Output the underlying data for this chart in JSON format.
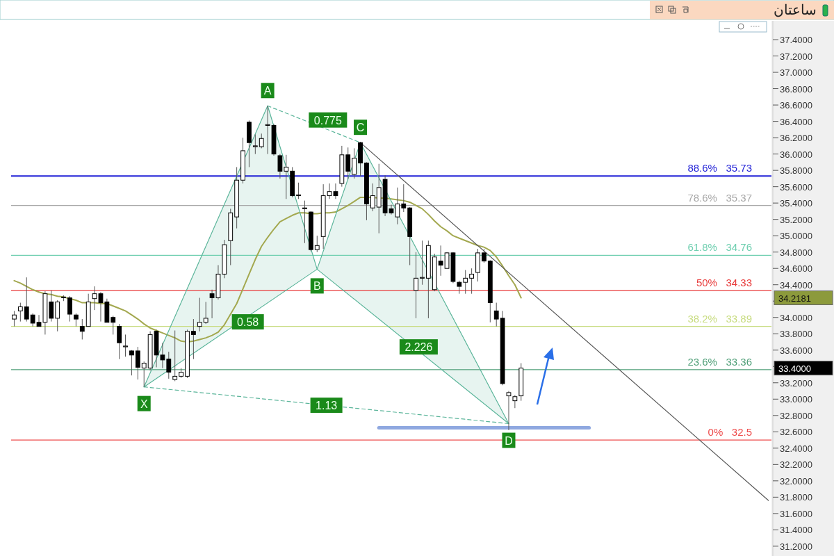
{
  "chart_data": {
    "type": "candlestick",
    "title": "ساعتان",
    "categories": [
      null,
      null,
      null,
      null,
      null,
      null,
      null,
      null,
      null,
      null,
      null,
      null,
      null,
      null,
      null,
      null,
      null,
      null,
      null,
      null,
      null,
      null,
      null,
      null,
      null,
      null,
      null,
      null,
      null,
      null,
      null,
      null,
      null,
      null,
      null,
      null,
      null,
      null,
      null,
      null,
      null,
      null,
      null,
      null,
      null,
      null,
      null,
      null,
      null,
      null,
      null,
      null,
      null,
      null,
      null,
      null,
      null,
      null,
      null,
      null,
      null,
      null,
      null,
      null,
      null,
      null,
      null,
      null,
      null,
      null,
      null,
      null,
      null,
      null,
      null,
      null,
      null,
      null,
      null,
      null,
      null,
      null,
      null,
      null,
      null,
      null,
      null,
      null,
      null,
      null,
      null,
      null,
      null,
      null,
      null,
      null,
      null,
      null,
      null,
      null,
      null,
      null,
      null,
      null,
      null,
      null,
      null,
      null,
      null,
      null,
      null,
      null,
      null,
      null,
      null,
      null,
      null,
      null,
      null,
      null,
      null,
      null,
      null
    ],
    "ylim": [
      31.08,
      37.63
    ],
    "yticks": [
      {
        "value": 31.2,
        "label": "31.2000"
      },
      {
        "value": 31.4,
        "label": "31.4000"
      },
      {
        "value": 31.6,
        "label": "31.6000"
      },
      {
        "value": 31.8,
        "label": "31.8000"
      },
      {
        "value": 32.0,
        "label": "32.0000"
      },
      {
        "value": 32.2,
        "label": "32.2000"
      },
      {
        "value": 32.4,
        "label": "32.4000"
      },
      {
        "value": 32.6,
        "label": "32.6000"
      },
      {
        "value": 32.8,
        "label": "32.8000"
      },
      {
        "value": 33.0,
        "label": "33.0000"
      },
      {
        "value": 33.2,
        "label": "33.2000"
      },
      {
        "value": 33.4,
        "label": null
      },
      {
        "value": 33.6,
        "label": "33.6000"
      },
      {
        "value": 33.8,
        "label": "33.8000"
      },
      {
        "value": 34.0,
        "label": "34.0000"
      },
      {
        "value": 34.2,
        "label": null
      },
      {
        "value": 34.4,
        "label": "34.4000"
      },
      {
        "value": 34.6,
        "label": "34.6000"
      },
      {
        "value": 34.8,
        "label": "34.8000"
      },
      {
        "value": 35.0,
        "label": "35.0000"
      },
      {
        "value": 35.2,
        "label": "35.2000"
      },
      {
        "value": 35.4,
        "label": "35.4000"
      },
      {
        "value": 35.6,
        "label": "35.6000"
      },
      {
        "value": 35.8,
        "label": "35.8000"
      },
      {
        "value": 36.0,
        "label": "36.0000"
      },
      {
        "value": 36.2,
        "label": "36.2000"
      },
      {
        "value": 36.4,
        "label": "36.4000"
      },
      {
        "value": 36.6,
        "label": "36.6000"
      },
      {
        "value": 36.8,
        "label": "36.8000"
      },
      {
        "value": 37.0,
        "label": "37.0000"
      },
      {
        "value": 37.2,
        "label": "37.2000"
      },
      {
        "value": 37.4,
        "label": "37.4000"
      }
    ],
    "tick_labels": "y",
    "grid": false,
    "series": [
      {
        "type": "line",
        "color": "#a3a84f",
        "values": [
          34.45,
          34.42,
          34.38,
          34.34,
          34.31,
          34.29,
          34.28,
          34.26,
          34.25,
          34.23,
          34.21,
          34.18,
          34.18,
          34.18,
          34.17,
          34.17,
          34.14,
          34.11,
          34.08,
          34.03,
          33.98,
          33.92,
          33.87,
          33.84,
          33.81,
          33.78,
          33.75,
          33.71,
          33.7,
          33.71,
          33.73,
          33.75,
          33.78,
          33.82,
          33.91,
          34.04,
          34.17,
          34.35,
          34.53,
          34.71,
          34.87,
          34.98,
          35.08,
          35.17,
          35.21,
          35.25,
          35.28,
          35.28,
          35.27,
          35.27,
          35.28,
          35.28,
          35.29,
          35.33,
          35.37,
          35.42,
          35.47,
          35.47,
          35.47,
          35.46,
          35.46,
          35.45,
          35.44,
          35.43,
          35.41,
          35.37,
          35.33,
          35.26,
          35.18,
          35.11,
          35.06,
          35.0,
          34.97,
          34.94,
          34.91,
          34.88,
          34.86,
          34.82,
          34.74,
          34.63,
          34.51,
          34.4,
          34.24,
          null,
          null,
          null,
          null,
          null,
          null,
          null,
          null,
          null,
          null,
          null,
          null,
          null,
          null,
          null,
          null,
          null,
          null,
          null,
          null,
          null,
          null,
          null,
          null,
          null,
          null,
          null,
          null,
          null,
          null,
          null,
          null,
          null,
          null,
          null,
          null,
          null,
          null,
          null,
          null
        ]
      },
      {
        "type": "line",
        "color": "#5bb59a",
        "values": [
          null,
          null,
          null,
          null,
          null,
          null,
          null,
          null,
          null,
          null,
          null,
          null,
          null,
          null,
          null,
          null,
          null,
          null,
          null,
          null,
          null,
          33.15,
          null,
          null,
          null,
          null,
          null,
          null,
          null,
          null,
          null,
          null,
          null,
          null,
          null,
          null,
          null,
          null,
          null,
          null,
          null,
          36.59,
          null,
          null,
          null,
          null,
          null,
          null,
          null,
          34.59,
          null,
          null,
          null,
          null,
          null,
          null,
          36.14,
          null,
          null,
          null,
          null,
          null,
          null,
          null,
          null,
          null,
          null,
          null,
          null,
          null,
          null,
          null,
          null,
          null,
          null,
          null,
          null,
          null,
          null,
          null,
          32.7,
          null,
          null,
          null,
          null,
          null,
          null,
          null,
          null,
          null,
          null,
          null,
          null,
          null,
          null,
          null,
          null,
          null,
          null,
          null,
          null,
          null,
          null,
          null,
          null,
          null,
          null,
          null,
          null,
          null,
          null,
          null,
          null,
          null,
          null,
          null,
          null,
          null,
          null,
          null,
          null,
          null,
          null
        ]
      },
      {
        "type": "line",
        "color": "#5bb59a",
        "values": [
          null,
          null,
          null,
          null,
          null,
          null,
          null,
          null,
          null,
          null,
          null,
          null,
          null,
          null,
          null,
          null,
          null,
          null,
          null,
          null,
          null,
          33.15,
          null,
          null,
          null,
          null,
          null,
          null,
          null,
          null,
          null,
          null,
          null,
          null,
          null,
          null,
          null,
          null,
          null,
          null,
          null,
          null,
          null,
          null,
          null,
          null,
          null,
          null,
          null,
          34.59,
          null,
          null,
          null,
          null,
          null,
          null,
          null,
          null,
          null,
          null,
          null,
          null,
          null,
          null,
          null,
          null,
          null,
          null,
          null,
          null,
          null,
          null,
          null,
          null,
          null,
          null,
          null,
          null,
          null,
          null,
          32.7,
          null,
          null,
          null,
          null,
          null,
          null,
          null,
          null,
          null,
          null,
          null,
          null,
          null,
          null,
          null,
          null,
          null,
          null,
          null,
          null,
          null,
          null,
          null,
          null,
          null,
          null,
          null,
          null,
          null,
          null,
          null,
          null,
          null,
          null,
          null,
          null,
          null,
          null,
          null,
          null,
          null,
          null
        ]
      },
      {
        "type": "line",
        "color": "#5bb59a",
        "line_style": "dashed",
        "values": [
          null,
          null,
          null,
          null,
          null,
          null,
          null,
          null,
          null,
          null,
          null,
          null,
          null,
          null,
          null,
          null,
          null,
          null,
          null,
          null,
          null,
          33.15,
          null,
          null,
          null,
          null,
          null,
          null,
          null,
          null,
          null,
          null,
          null,
          null,
          null,
          null,
          null,
          null,
          null,
          null,
          null,
          null,
          null,
          null,
          null,
          null,
          null,
          null,
          null,
          null,
          null,
          null,
          null,
          null,
          null,
          null,
          null,
          null,
          null,
          null,
          null,
          null,
          null,
          null,
          null,
          null,
          null,
          null,
          null,
          null,
          null,
          null,
          null,
          null,
          null,
          null,
          null,
          null,
          null,
          null,
          32.7,
          null,
          null,
          null,
          null,
          null,
          null,
          null,
          null,
          null,
          null,
          null,
          null,
          null,
          null,
          null,
          null,
          null,
          null,
          null,
          null,
          null,
          null,
          null,
          null,
          null,
          null,
          null,
          null,
          null,
          null,
          null,
          null,
          null,
          null,
          null,
          null,
          null,
          null,
          null,
          null,
          null,
          null
        ]
      },
      {
        "type": "line",
        "color": "#5bb59a",
        "line_style": "dashed",
        "values": [
          null,
          null,
          null,
          null,
          null,
          null,
          null,
          null,
          null,
          null,
          null,
          null,
          null,
          null,
          null,
          null,
          null,
          null,
          null,
          null,
          null,
          null,
          null,
          null,
          null,
          null,
          null,
          null,
          null,
          null,
          null,
          null,
          null,
          null,
          null,
          null,
          null,
          null,
          null,
          null,
          null,
          36.59,
          null,
          null,
          null,
          null,
          null,
          null,
          null,
          null,
          null,
          null,
          null,
          null,
          null,
          null,
          36.14,
          null,
          null,
          null,
          null,
          null,
          null,
          null,
          null,
          null,
          null,
          null,
          null,
          null,
          null,
          null,
          null,
          null,
          null,
          null,
          null,
          null,
          null,
          null,
          null,
          null,
          null,
          null,
          null,
          null,
          null,
          null,
          null,
          null,
          null,
          null,
          null,
          null,
          null,
          null,
          null,
          null,
          null,
          null,
          null,
          null,
          null,
          null,
          null,
          null,
          null,
          null,
          null,
          null,
          null,
          null,
          null,
          null,
          null,
          null,
          null,
          null,
          null,
          null,
          null,
          null,
          null
        ]
      },
      {
        "type": "line",
        "color": "#555555",
        "values": [
          null,
          null,
          null,
          null,
          null,
          null,
          null,
          null,
          null,
          null,
          null,
          null,
          null,
          null,
          null,
          null,
          null,
          null,
          null,
          null,
          null,
          null,
          null,
          null,
          null,
          null,
          null,
          null,
          null,
          null,
          null,
          null,
          null,
          null,
          null,
          null,
          null,
          null,
          null,
          null,
          null,
          null,
          null,
          null,
          null,
          null,
          null,
          null,
          null,
          null,
          null,
          null,
          null,
          null,
          null,
          null,
          36.14,
          null,
          null,
          null,
          null,
          null,
          null,
          null,
          null,
          null,
          null,
          null,
          null,
          null,
          null,
          null,
          null,
          null,
          null,
          null,
          null,
          null,
          null,
          null,
          null,
          null,
          null,
          null,
          null,
          null,
          null,
          null,
          null,
          null,
          null,
          null,
          null,
          null,
          null,
          null,
          null,
          null,
          null,
          null,
          null,
          null,
          null,
          null,
          null,
          null,
          null,
          null,
          null,
          null,
          null,
          null,
          null,
          null,
          null,
          null,
          null,
          null,
          null,
          null,
          null,
          null,
          31.76
        ]
      },
      {
        "type": "line",
        "color": "#8fa8e0",
        "values": [
          null,
          null,
          null,
          null,
          null,
          null,
          null,
          null,
          null,
          null,
          null,
          null,
          null,
          null,
          null,
          null,
          null,
          null,
          null,
          null,
          null,
          null,
          null,
          null,
          null,
          null,
          null,
          null,
          null,
          null,
          null,
          null,
          null,
          null,
          null,
          null,
          null,
          null,
          null,
          null,
          null,
          null,
          null,
          null,
          null,
          null,
          null,
          null,
          null,
          null,
          null,
          null,
          null,
          null,
          null,
          null,
          null,
          null,
          null,
          32.65,
          null,
          null,
          null,
          null,
          null,
          null,
          null,
          null,
          null,
          null,
          null,
          null,
          null,
          null,
          null,
          null,
          null,
          null,
          null,
          null,
          null,
          null,
          null,
          null,
          null,
          null,
          null,
          null,
          null,
          null,
          null,
          null,
          null,
          32.65,
          null,
          null,
          null,
          null,
          null,
          null,
          null,
          null,
          null,
          null,
          null,
          null,
          null,
          null,
          null,
          null,
          null,
          null,
          null,
          null,
          null,
          null,
          null,
          null,
          null,
          null,
          null,
          null,
          null
        ]
      },
      {
        "ohlc": [
          [
            33.98,
            34.08,
            33.89,
            34.03
          ],
          [
            34.08,
            34.18,
            33.95,
            34.13
          ],
          [
            34.13,
            34.49,
            33.95,
            33.98
          ],
          [
            34.03,
            34.05,
            33.89,
            33.93
          ],
          [
            33.94,
            34.03,
            33.89,
            33.89
          ],
          [
            33.94,
            34.32,
            33.79,
            34.29
          ],
          [
            34.19,
            34.33,
            33.95,
            33.99
          ],
          [
            33.99,
            34.21,
            33.83,
            34.19
          ],
          [
            34.24,
            34.27,
            34.2,
            34.25
          ],
          [
            34.24,
            34.26,
            33.95,
            34.04
          ],
          [
            34.03,
            34.05,
            33.89,
            33.98
          ],
          [
            33.89,
            33.98,
            33.73,
            33.83
          ],
          [
            33.89,
            34.29,
            33.89,
            34.19
          ],
          [
            34.23,
            34.38,
            34.09,
            34.29
          ],
          [
            34.29,
            34.31,
            33.95,
            34.18
          ],
          [
            34.19,
            34.23,
            33.94,
            33.94
          ],
          [
            34.0,
            34.02,
            33.79,
            33.94
          ],
          [
            33.89,
            33.92,
            33.49,
            33.69
          ],
          [
            33.64,
            33.79,
            33.52,
            33.65
          ],
          [
            33.59,
            33.6,
            33.29,
            33.54
          ],
          [
            33.59,
            33.64,
            33.24,
            33.39
          ],
          [
            33.38,
            33.46,
            33.15,
            33.44
          ],
          [
            33.38,
            33.83,
            33.35,
            33.79
          ],
          [
            33.83,
            33.85,
            33.39,
            33.54
          ],
          [
            33.54,
            33.69,
            33.38,
            33.48
          ],
          [
            33.49,
            33.58,
            33.25,
            33.33
          ],
          [
            33.24,
            33.84,
            33.22,
            33.28
          ],
          [
            33.28,
            33.38,
            33.26,
            33.33
          ],
          [
            33.28,
            33.85,
            33.26,
            33.83
          ],
          [
            33.83,
            33.98,
            33.49,
            33.79
          ],
          [
            33.89,
            34.24,
            33.83,
            33.94
          ],
          [
            33.94,
            34.19,
            33.92,
            33.99
          ],
          [
            34.29,
            34.34,
            33.99,
            34.24
          ],
          [
            34.24,
            34.64,
            34.22,
            34.53
          ],
          [
            34.53,
            34.95,
            34.48,
            34.89
          ],
          [
            34.94,
            35.33,
            34.64,
            35.28
          ],
          [
            35.23,
            35.84,
            35.09,
            35.68
          ],
          [
            35.68,
            36.2,
            35.64,
            36.04
          ],
          [
            36.39,
            36.41,
            35.84,
            36.14
          ],
          [
            36.09,
            36.24,
            36.0,
            36.1
          ],
          [
            36.09,
            36.25,
            36.07,
            36.19
          ],
          [
            36.35,
            36.59,
            36.0,
            36.36
          ],
          [
            36.35,
            36.37,
            35.98,
            36.0
          ],
          [
            35.98,
            36.0,
            35.7,
            35.79
          ],
          [
            35.79,
            35.99,
            35.45,
            35.84
          ],
          [
            35.79,
            35.84,
            35.47,
            35.49
          ],
          [
            35.49,
            35.65,
            35.45,
            35.5
          ],
          [
            35.33,
            35.43,
            34.91,
            35.34
          ],
          [
            35.29,
            35.3,
            34.81,
            34.83
          ],
          [
            34.83,
            35.0,
            34.8,
            34.88
          ],
          [
            34.99,
            35.63,
            34.84,
            35.49
          ],
          [
            35.49,
            35.64,
            35.45,
            35.54
          ],
          [
            35.54,
            35.64,
            35.45,
            35.49
          ],
          [
            35.64,
            36.1,
            35.6,
            35.99
          ],
          [
            35.99,
            36.08,
            35.69,
            35.79
          ],
          [
            35.75,
            36.07,
            35.7,
            35.95
          ],
          [
            36.14,
            36.15,
            35.73,
            35.89
          ],
          [
            35.89,
            35.9,
            35.19,
            35.39
          ],
          [
            35.34,
            35.64,
            35.3,
            35.49
          ],
          [
            35.35,
            35.88,
            35.03,
            35.59
          ],
          [
            35.69,
            35.74,
            35.24,
            35.28
          ],
          [
            35.33,
            35.38,
            35.26,
            35.28
          ],
          [
            35.23,
            35.59,
            35.14,
            35.39
          ],
          [
            35.39,
            35.63,
            35.29,
            35.34
          ],
          [
            35.34,
            35.35,
            34.64,
            34.99
          ],
          [
            34.33,
            34.8,
            33.99,
            34.48
          ],
          [
            34.48,
            34.94,
            34.4,
            34.49
          ],
          [
            34.48,
            34.94,
            33.99,
            34.88
          ],
          [
            34.34,
            34.78,
            34.32,
            34.74
          ],
          [
            34.69,
            34.88,
            34.51,
            34.64
          ],
          [
            34.6,
            34.8,
            34.6,
            34.79
          ],
          [
            34.79,
            34.8,
            34.42,
            34.44
          ],
          [
            34.43,
            34.45,
            34.29,
            34.38
          ],
          [
            34.43,
            34.58,
            34.29,
            34.48
          ],
          [
            34.48,
            34.6,
            34.29,
            34.53
          ],
          [
            34.55,
            34.84,
            34.44,
            34.79
          ],
          [
            34.79,
            34.84,
            34.67,
            34.69
          ],
          [
            34.69,
            34.7,
            33.94,
            34.18
          ],
          [
            34.08,
            34.18,
            33.89,
            33.98
          ],
          [
            33.99,
            34.08,
            33.17,
            33.19
          ],
          [
            33.04,
            33.1,
            32.62,
            33.08
          ],
          [
            32.98,
            33.05,
            32.89,
            33.03
          ],
          [
            33.04,
            33.44,
            32.98,
            33.38
          ],
          null,
          null,
          null,
          null,
          null,
          null,
          null,
          null,
          null,
          null,
          null,
          null,
          null,
          null,
          null,
          null,
          null,
          null,
          null,
          null,
          null,
          null,
          null,
          null,
          null,
          null,
          null,
          null,
          null,
          null,
          null,
          null,
          null,
          null,
          null,
          null,
          null,
          null,
          null,
          null
        ]
      }
    ],
    "ref_lines": [
      {
        "axis": "y",
        "value": 35.73,
        "label": "88.6%   35.73",
        "color": "#1f1fd6"
      },
      {
        "axis": "y",
        "value": 35.37,
        "label": "78.6%   35.37",
        "color": "#a8a8a8"
      },
      {
        "axis": "y",
        "value": 34.76,
        "label": "61.8%   34.76",
        "color": "#6fcfb0"
      },
      {
        "axis": "y",
        "value": 34.33,
        "label": "50%   34.33",
        "color": "#e83a3a"
      },
      {
        "axis": "y",
        "value": 33.89,
        "label": "38.2%   33.89",
        "color": "#c8dc80"
      },
      {
        "axis": "y",
        "value": 33.36,
        "label": "23.6%   33.36",
        "color": "#4f9f78"
      },
      {
        "axis": "y",
        "value": 32.5,
        "label": "0%   32.5",
        "color": "#ee4b4b"
      }
    ],
    "annotations": [
      "X",
      "A",
      "B",
      "C",
      "D",
      "0.775",
      "0.58",
      "2.226",
      "1.13",
      "34.2181",
      "33.4000"
    ]
  }
}
